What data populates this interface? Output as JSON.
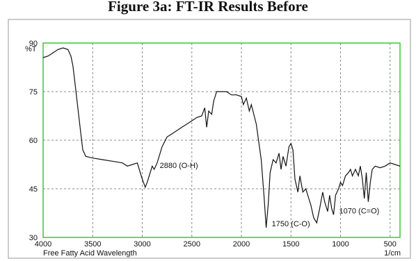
{
  "chart_data": {
    "type": "line",
    "title": "Figure 3a: FT-IR Results Before",
    "y_label": "%T",
    "x_label": "Free Fatty Acid Wavelength",
    "x_unit": "1/cm",
    "annotations": [
      {
        "text": "2880 (O-H)",
        "x": 2880,
        "y": 51
      },
      {
        "text": "1750 (C-O)",
        "x": 1750,
        "y": 33
      },
      {
        "text": "1070 (C=O)",
        "x": 1070,
        "y": 37
      }
    ],
    "color": "#111111",
    "x": [
      4000,
      3950,
      3900,
      3850,
      3800,
      3750,
      3720,
      3700,
      3680,
      3650,
      3620,
      3600,
      3570,
      3500,
      3400,
      3300,
      3200,
      3150,
      3100,
      3050,
      3020,
      3000,
      2970,
      2950,
      2930,
      2900,
      2880,
      2850,
      2800,
      2750,
      2700,
      2650,
      2600,
      2550,
      2500,
      2450,
      2400,
      2370,
      2350,
      2330,
      2300,
      2280,
      2250,
      2200,
      2150,
      2100,
      2050,
      2000,
      1980,
      1950,
      1920,
      1900,
      1850,
      1800,
      1770,
      1750,
      1730,
      1710,
      1680,
      1650,
      1620,
      1600,
      1580,
      1550,
      1520,
      1500,
      1480,
      1460,
      1430,
      1410,
      1380,
      1350,
      1320,
      1300,
      1270,
      1240,
      1210,
      1180,
      1160,
      1130,
      1110,
      1090,
      1070,
      1050,
      1020,
      1000,
      980,
      950,
      920,
      900,
      880,
      850,
      820,
      800,
      780,
      760,
      740,
      720,
      700,
      680,
      650,
      600,
      550,
      500,
      450,
      400
    ],
    "values": [
      85.5,
      86,
      87,
      88,
      88.5,
      88,
      86,
      83,
      78,
      70,
      62,
      57,
      55,
      54.5,
      54,
      53.5,
      53,
      52,
      52.5,
      53,
      50,
      48,
      45.5,
      47,
      49,
      52,
      51,
      53,
      58,
      61,
      62,
      63,
      64,
      65,
      66,
      67,
      67.5,
      70,
      64,
      69,
      68,
      72,
      75,
      75,
      75,
      74,
      74,
      73.5,
      71,
      73,
      69,
      71,
      65,
      54,
      42,
      33,
      40,
      50,
      54,
      53,
      56,
      51,
      55,
      52,
      58,
      59,
      57,
      48,
      44,
      49,
      44,
      45,
      42,
      40,
      36,
      34.5,
      39,
      44,
      41,
      38,
      43,
      39,
      37,
      43,
      45,
      47,
      46,
      49,
      50,
      51,
      49,
      51,
      49,
      52,
      48,
      42,
      50,
      41,
      47,
      51,
      52,
      51.5,
      52,
      53,
      52.5,
      52
    ],
    "xlim": [
      4000,
      400
    ],
    "xticks": [
      4000,
      3500,
      3000,
      2500,
      2000,
      1500,
      1000,
      500
    ],
    "ylim": [
      30,
      90
    ],
    "yticks": [
      30,
      45,
      60,
      75,
      90
    ],
    "grid": true
  }
}
